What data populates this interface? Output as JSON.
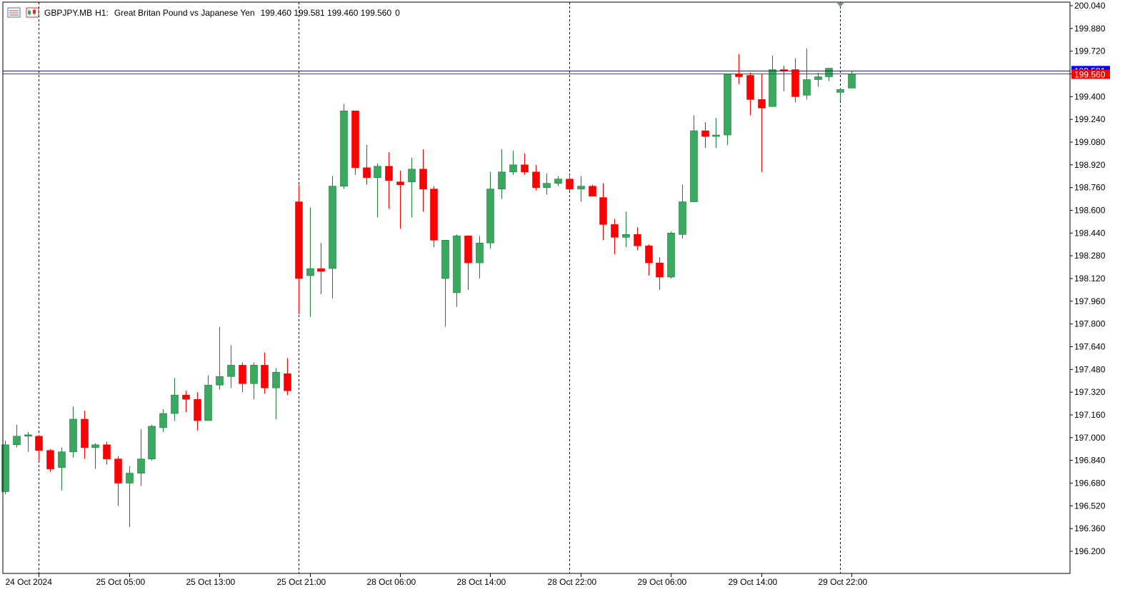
{
  "header": {
    "symbol": "GBPJPY.MB",
    "timeframe": "H1:",
    "description": "Great Britan Pound vs Japanese Yen",
    "ohlc": "199.460 199.581 199.460 199.560",
    "extra": "0"
  },
  "colors": {
    "bull": "#3aa85f",
    "bear": "#ff0000",
    "ask_line": "#0000ff",
    "bid_line": "#ff0000",
    "grid": "#000000",
    "background": "#ffffff"
  },
  "chart_data": {
    "type": "candlestick",
    "timeframe": "H1",
    "ylim": [
      196.1,
      200.04
    ],
    "y_ticks": [
      "200.040",
      "199.880",
      "199.720",
      "199.560",
      "199.400",
      "199.240",
      "199.080",
      "198.920",
      "198.760",
      "198.600",
      "198.440",
      "198.280",
      "198.120",
      "197.960",
      "197.800",
      "197.640",
      "197.480",
      "197.320",
      "197.160",
      "197.000",
      "196.840",
      "196.680",
      "196.520",
      "196.360",
      "196.200"
    ],
    "x_labels": [
      {
        "bar": 3,
        "label": "24 Oct 2024"
      },
      {
        "bar": 11,
        "label": "25 Oct 05:00"
      },
      {
        "bar": 19,
        "label": "25 Oct 13:00"
      },
      {
        "bar": 27,
        "label": "25 Oct 21:00"
      },
      {
        "bar": 35,
        "label": "28 Oct 06:00"
      },
      {
        "bar": 43,
        "label": "28 Oct 14:00"
      },
      {
        "bar": 51,
        "label": "28 Oct 22:00"
      },
      {
        "bar": 59,
        "label": "29 Oct 06:00"
      },
      {
        "bar": 67,
        "label": "29 Oct 14:00"
      },
      {
        "bar": 75,
        "label": "29 Oct 22:00"
      }
    ],
    "period_separators": [
      3,
      26,
      50,
      74
    ],
    "bid_price": 199.56,
    "bid_label": "199.560",
    "ask_price": 199.581,
    "ask_label": "199.581",
    "candles": [
      [
        196.62,
        196.98,
        196.6,
        196.95
      ],
      [
        196.95,
        197.09,
        196.93,
        197.01
      ],
      [
        197.01,
        197.04,
        196.9,
        197.02
      ],
      [
        197.01,
        197.02,
        196.84,
        196.91
      ],
      [
        196.91,
        196.92,
        196.76,
        196.78
      ],
      [
        196.79,
        196.93,
        196.63,
        196.9
      ],
      [
        196.9,
        197.22,
        196.86,
        197.13
      ],
      [
        197.13,
        197.19,
        196.85,
        196.93
      ],
      [
        196.93,
        196.96,
        196.78,
        196.95
      ],
      [
        196.95,
        196.97,
        196.81,
        196.85
      ],
      [
        196.85,
        196.87,
        196.52,
        196.68
      ],
      [
        196.68,
        196.8,
        196.37,
        196.75
      ],
      [
        196.75,
        197.06,
        196.66,
        196.85
      ],
      [
        196.85,
        197.09,
        196.84,
        197.08
      ],
      [
        197.07,
        197.2,
        197.04,
        197.17
      ],
      [
        197.17,
        197.42,
        197.12,
        197.3
      ],
      [
        197.3,
        197.33,
        197.18,
        197.27
      ],
      [
        197.27,
        197.32,
        197.05,
        197.12
      ],
      [
        197.12,
        197.44,
        197.12,
        197.37
      ],
      [
        197.37,
        197.78,
        197.34,
        197.43
      ],
      [
        197.43,
        197.65,
        197.35,
        197.51
      ],
      [
        197.51,
        197.53,
        197.32,
        197.38
      ],
      [
        197.38,
        197.53,
        197.27,
        197.51
      ],
      [
        197.51,
        197.6,
        197.31,
        197.35
      ],
      [
        197.35,
        197.49,
        197.13,
        197.46
      ],
      [
        197.45,
        197.56,
        197.3,
        197.33
      ],
      [
        198.66,
        198.78,
        197.87,
        198.12
      ],
      [
        198.14,
        198.62,
        197.85,
        198.19
      ],
      [
        198.19,
        198.37,
        198.01,
        198.17
      ],
      [
        198.19,
        198.84,
        197.98,
        198.77
      ],
      [
        198.77,
        199.35,
        198.75,
        199.3
      ],
      [
        199.3,
        199.3,
        198.85,
        198.9
      ],
      [
        198.9,
        199.06,
        198.78,
        198.83
      ],
      [
        198.83,
        198.93,
        198.55,
        198.91
      ],
      [
        198.91,
        199.01,
        198.61,
        198.81
      ],
      [
        198.8,
        198.88,
        198.47,
        198.78
      ],
      [
        198.8,
        198.97,
        198.55,
        198.89
      ],
      [
        198.89,
        199.03,
        198.59,
        198.75
      ],
      [
        198.75,
        198.77,
        198.34,
        198.39
      ],
      [
        198.12,
        198.39,
        197.78,
        198.39
      ],
      [
        198.02,
        198.43,
        197.92,
        198.42
      ],
      [
        198.42,
        198.4,
        198.04,
        198.23
      ],
      [
        198.23,
        198.42,
        198.12,
        198.37
      ],
      [
        198.37,
        198.87,
        198.33,
        198.75
      ],
      [
        198.75,
        199.03,
        198.68,
        198.87
      ],
      [
        198.87,
        199.02,
        198.85,
        198.92
      ],
      [
        198.92,
        199.0,
        198.85,
        198.87
      ],
      [
        198.87,
        198.92,
        198.74,
        198.76
      ],
      [
        198.76,
        198.86,
        198.71,
        198.79
      ],
      [
        198.79,
        198.84,
        198.77,
        198.82
      ],
      [
        198.82,
        198.84,
        198.74,
        198.75
      ],
      [
        198.75,
        198.84,
        198.66,
        198.77
      ],
      [
        198.77,
        198.78,
        198.7,
        198.7
      ],
      [
        198.69,
        198.79,
        198.39,
        198.5
      ],
      [
        198.5,
        198.54,
        198.29,
        198.41
      ],
      [
        198.41,
        198.59,
        198.34,
        198.43
      ],
      [
        198.43,
        198.48,
        198.32,
        198.35
      ],
      [
        198.35,
        198.36,
        198.14,
        198.23
      ],
      [
        198.23,
        198.27,
        198.04,
        198.13
      ],
      [
        198.13,
        198.45,
        198.12,
        198.44
      ],
      [
        198.43,
        198.78,
        198.4,
        198.66
      ],
      [
        198.66,
        199.27,
        198.67,
        199.16
      ],
      [
        199.16,
        199.22,
        199.04,
        199.12
      ],
      [
        199.12,
        199.25,
        199.04,
        199.13
      ],
      [
        199.13,
        199.56,
        199.06,
        199.56
      ],
      [
        199.56,
        199.7,
        199.49,
        199.54
      ],
      [
        199.55,
        199.57,
        199.27,
        199.38
      ],
      [
        199.38,
        199.56,
        198.87,
        199.32
      ],
      [
        199.33,
        199.69,
        199.33,
        199.59
      ],
      [
        199.59,
        199.62,
        199.44,
        199.58
      ],
      [
        199.59,
        199.67,
        199.36,
        199.4
      ],
      [
        199.41,
        199.74,
        199.38,
        199.52
      ],
      [
        199.52,
        199.57,
        199.47,
        199.54
      ],
      [
        199.54,
        199.58,
        199.51,
        199.6
      ],
      [
        199.43,
        199.46,
        199.37,
        199.45
      ],
      [
        199.46,
        199.58,
        199.46,
        199.56
      ]
    ]
  }
}
